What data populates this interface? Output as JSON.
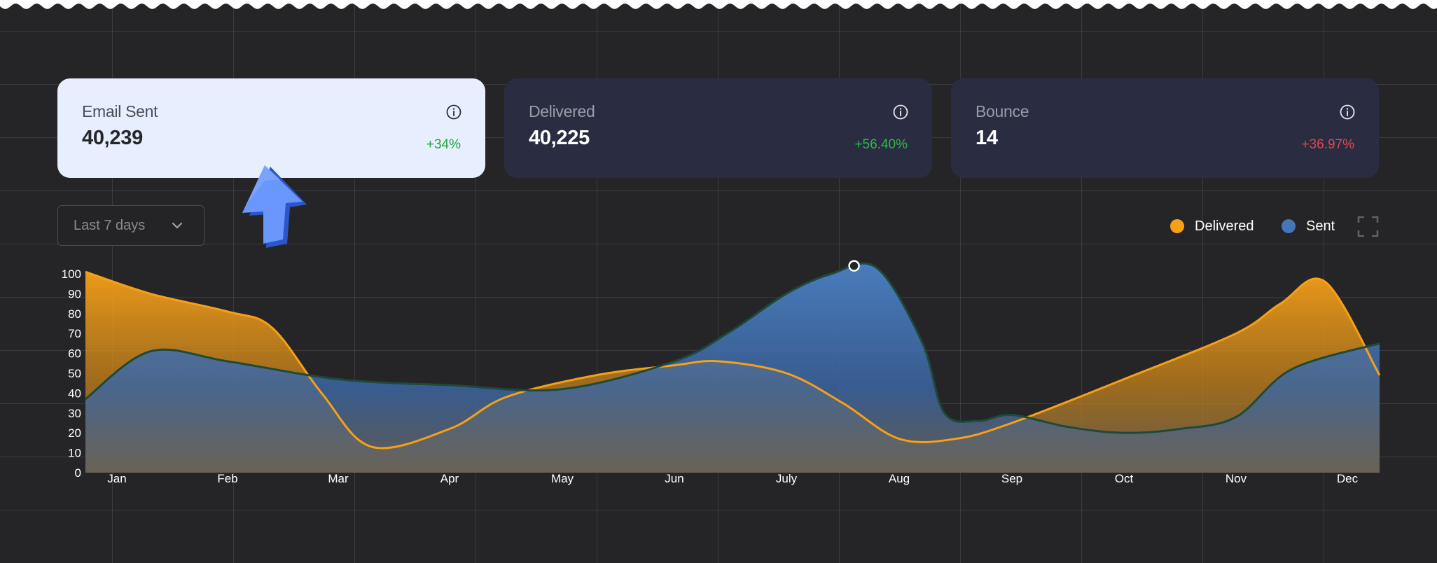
{
  "stats": {
    "email_sent": {
      "label": "Email Sent",
      "value": "40,239",
      "change": "+34%"
    },
    "delivered": {
      "label": "Delivered",
      "value": "40,225",
      "change": "+56.40%"
    },
    "bounce": {
      "label": "Bounce",
      "value": "14",
      "change": "+36.97%"
    }
  },
  "filter": {
    "period": "Last 7 days"
  },
  "legend": {
    "delivered": "Delivered",
    "sent": "Sent"
  },
  "icons": {
    "info": "info-icon",
    "chevron": "chevron-down-icon",
    "fullscreen": "fullscreen-icon",
    "cursor": "cursor-arrow-icon"
  },
  "colors": {
    "delivered": "#f6a019",
    "sent": "#4577b8",
    "sent_line": "#1d4a3a",
    "positive": "#22a33a",
    "negative": "#e0454f",
    "card_light": "#e7eefe",
    "card_dark": "#2a2d42",
    "background": "#252528"
  },
  "chart_data": {
    "type": "area",
    "categories": [
      "Jan",
      "Feb",
      "Mar",
      "Apr",
      "May",
      "Jun",
      "July",
      "Aug",
      "Sep",
      "Oct",
      "Nov",
      "Dec"
    ],
    "y_ticks": [
      0,
      10,
      20,
      30,
      40,
      50,
      60,
      70,
      80,
      90,
      100
    ],
    "ylim": [
      0,
      100
    ],
    "grid": true,
    "legend_position": "top-right",
    "series": [
      {
        "name": "Delivered",
        "x": [
          -0.3,
          0.3,
          1.0,
          1.4,
          1.85,
          2.3,
          3.0,
          3.5,
          4.3,
          5.0,
          5.4,
          6.0,
          6.5,
          7.0,
          7.5,
          8.0,
          9.0,
          10.0,
          10.4,
          10.8,
          11.3
        ],
        "values": [
          101,
          90,
          81,
          73,
          40,
          13,
          22,
          38,
          49,
          54,
          56,
          50,
          35,
          17,
          17,
          25,
          47,
          70,
          85,
          96,
          49
        ],
        "smooth": true
      },
      {
        "name": "Sent",
        "x": [
          -0.3,
          0.3,
          1.0,
          2.0,
          3.0,
          4.0,
          5.0,
          5.5,
          6.0,
          6.4,
          6.8,
          7.2,
          7.4,
          7.7,
          8.0,
          8.5,
          9.0,
          9.5,
          10.0,
          10.5,
          11.3
        ],
        "values": [
          37,
          61,
          56,
          47,
          44,
          42,
          56,
          71,
          90,
          100,
          103,
          66,
          30,
          26,
          29,
          23,
          20,
          22,
          28,
          52,
          65
        ],
        "smooth": true
      }
    ],
    "highlight_point": {
      "series": "Sent",
      "x": 6.6,
      "y": 104
    }
  }
}
